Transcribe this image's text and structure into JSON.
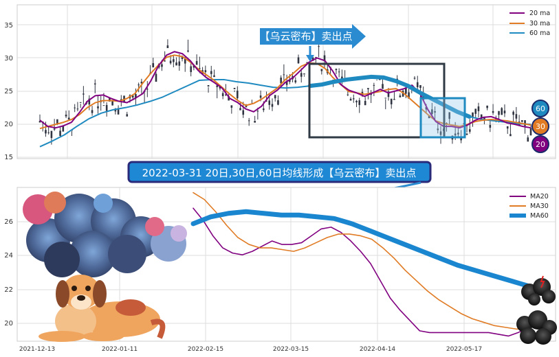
{
  "chart_data": [
    {
      "type": "candlestick+line",
      "ylim": [
        15,
        37
      ],
      "yticks": [
        "15",
        "20",
        "25",
        "30",
        "35"
      ],
      "grid": true,
      "legend": {
        "placement": "top-right",
        "items": [
          "20 ma",
          "30 ma",
          "60 ma"
        ]
      },
      "colors": {
        "ma20": "#800080",
        "ma30": "#e07b24",
        "ma60": "#1f8ac0",
        "candle": "#2f3440"
      },
      "callout": "【乌云密布】卖出点",
      "badges": [
        "60",
        "30",
        "20"
      ],
      "ma20_values": [
        20.5,
        19.6,
        19.4,
        19.7,
        20.2,
        21.6,
        23.2,
        24.0,
        24.1,
        23.6,
        23.2,
        23.0,
        23.6,
        24.3,
        26.1,
        28.3,
        29.8,
        30.3,
        30.0,
        29.0,
        27.6,
        26.6,
        25.9,
        25.1,
        23.6,
        23.0,
        22.1,
        21.7,
        22.5,
        24.0,
        24.8,
        25.9,
        26.6,
        27.7,
        28.8,
        29.4,
        29.0,
        27.5,
        25.6,
        24.8,
        24.4,
        23.9,
        24.4,
        24.9,
        24.4,
        24.7,
        25.0,
        25.5,
        24.3,
        22.0,
        20.3,
        19.6,
        19.6,
        19.4,
        19.8,
        20.5,
        20.9,
        21.0,
        20.6,
        20.1,
        19.9,
        19.6,
        19.4
      ],
      "ma30_values": [
        19.3,
        19.6,
        19.9,
        20.2,
        20.6,
        21.3,
        22.3,
        23.0,
        23.3,
        23.3,
        23.2,
        23.6,
        24.3,
        25.8,
        27.2,
        28.4,
        29.5,
        29.8,
        29.6,
        28.8,
        27.8,
        27.0,
        26.2,
        25.2,
        24.2,
        23.3,
        22.6,
        22.9,
        23.5,
        24.3,
        25.1,
        26.3,
        27.2,
        28.2,
        28.7,
        28.6,
        27.9,
        26.6,
        25.6,
        24.6,
        24.4,
        24.2,
        24.4,
        24.6,
        24.9,
        25.0,
        24.3,
        23.3,
        22.3,
        21.3,
        20.4,
        20.0,
        19.8,
        19.6,
        19.9,
        20.3,
        20.5,
        20.6,
        20.5,
        20.4,
        20.2,
        20.0,
        19.8
      ],
      "ma60_values": [
        16.7,
        17.5,
        18.4,
        19.6,
        20.7,
        21.5,
        22.0,
        22.3,
        22.7,
        23.2,
        23.8,
        24.6,
        25.4,
        26.2,
        26.3,
        26.3,
        26.0,
        25.8,
        25.5,
        25.2,
        25.1,
        25.2,
        25.4,
        25.6,
        26.0,
        26.3,
        26.5,
        26.7,
        26.6,
        26.1,
        25.4,
        24.4,
        23.5,
        22.6,
        21.7,
        21.0,
        20.6,
        20.4,
        20.2,
        20.0,
        19.9
      ]
    },
    {
      "type": "line",
      "xticks": [
        "2021-12-13",
        "2022-01-11",
        "2022-02-15",
        "2022-03-15",
        "2022-04-14",
        "2022-05-17"
      ],
      "yticks": [
        "20",
        "22",
        "24",
        "26"
      ],
      "ylim": [
        19,
        27.9
      ],
      "grid": true,
      "legend": {
        "placement": "top-right"
      },
      "series": [
        {
          "name": "MA20",
          "color": "#800080",
          "values": [
            26.7,
            26.0,
            25.1,
            24.4,
            24.1,
            24.0,
            24.2,
            24.5,
            24.8,
            24.6,
            24.6,
            24.7,
            25.1,
            25.5,
            25.6,
            25.3,
            24.8,
            24.2,
            23.5,
            22.5,
            21.5,
            20.8,
            20.2,
            19.6,
            19.5,
            19.5,
            19.5,
            19.5,
            19.5,
            19.5,
            19.5,
            19.4,
            19.3,
            19.5,
            19.8
          ]
        },
        {
          "name": "MA30",
          "color": "#e07b24",
          "values": [
            27.6,
            27.2,
            26.5,
            25.7,
            25.0,
            24.6,
            24.4,
            24.4,
            24.3,
            24.2,
            24.4,
            24.7,
            25.0,
            25.2,
            25.2,
            25.1,
            24.9,
            24.4,
            23.8,
            23.1,
            22.5,
            21.9,
            21.4,
            21.0,
            20.6,
            20.3,
            20.1,
            19.9,
            19.8,
            19.7,
            19.8
          ]
        },
        {
          "name": "MA60",
          "color": "#1a86d0",
          "values": [
            25.8,
            26.2,
            26.4,
            26.5,
            26.4,
            26.3,
            26.3,
            26.2,
            26.1,
            25.8,
            25.4,
            25.0,
            24.6,
            24.2,
            23.8,
            23.4,
            23.1,
            22.8,
            22.5,
            22.2
          ]
        }
      ]
    }
  ],
  "banner": "2022-03-31 20日,30日,60日均线形成【乌云密布】卖出点"
}
